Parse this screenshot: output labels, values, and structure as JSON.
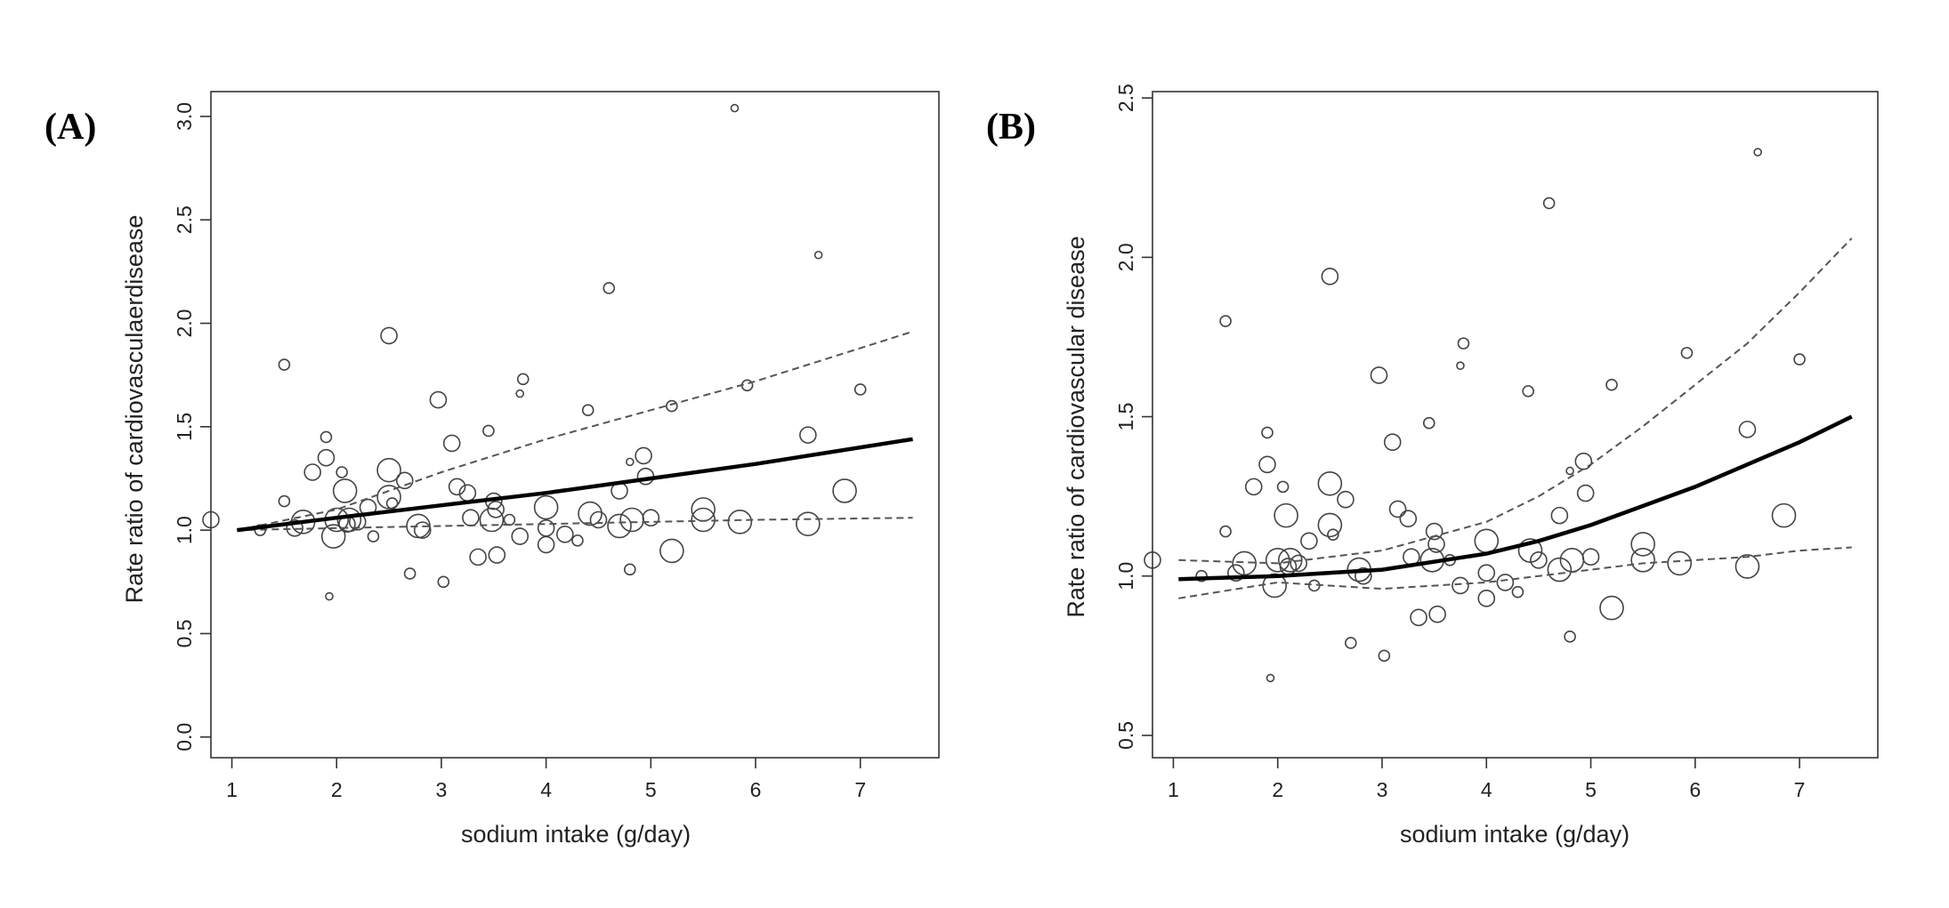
{
  "chart_data": [
    {
      "type": "scatter",
      "panel_label": "(A)",
      "xlabel": "sodium intake (g/day)",
      "ylabel": "Rate ratio of cardiovasculaerdisease",
      "xlim": [
        0.8,
        7.75
      ],
      "ylim": [
        -0.1,
        3.12
      ],
      "xticks": [
        1,
        2,
        3,
        4,
        5,
        6,
        7
      ],
      "yticks": [
        0.0,
        0.5,
        1.0,
        1.5,
        2.0,
        2.5,
        3.0
      ],
      "ytick_labels": [
        "0.0",
        "0.5",
        "1.0",
        "1.5",
        "2.0",
        "2.5",
        "3.0"
      ],
      "fit_curve": {
        "style": "solid",
        "x": [
          1.05,
          2,
          3,
          4,
          5,
          6,
          7.5
        ],
        "y": [
          1.0,
          1.06,
          1.12,
          1.18,
          1.25,
          1.32,
          1.44
        ]
      },
      "ci_upper": {
        "style": "dashed",
        "x": [
          1.05,
          2,
          3,
          4,
          5,
          6,
          7.5
        ],
        "y": [
          1.0,
          1.1,
          1.28,
          1.44,
          1.58,
          1.72,
          1.96
        ]
      },
      "ci_lower": {
        "style": "dashed",
        "x": [
          1.05,
          2,
          3,
          4,
          5,
          6,
          7.5
        ],
        "y": [
          1.0,
          1.01,
          1.02,
          1.03,
          1.04,
          1.05,
          1.06
        ]
      }
    },
    {
      "type": "scatter",
      "panel_label": "(B)",
      "xlabel": "sodium intake (g/day)",
      "ylabel": "Rate ratio of cardiovascular disease",
      "xlim": [
        0.8,
        7.75
      ],
      "ylim": [
        0.43,
        2.52
      ],
      "xticks": [
        1,
        2,
        3,
        4,
        5,
        6,
        7
      ],
      "yticks": [
        0.5,
        1.0,
        1.5,
        2.0,
        2.5
      ],
      "ytick_labels": [
        "0.5",
        "1.0",
        "1.5",
        "2.0",
        "2.5"
      ],
      "fit_curve": {
        "style": "solid",
        "x": [
          1.05,
          2,
          3,
          4,
          4.5,
          5,
          5.5,
          6,
          6.5,
          7,
          7.5
        ],
        "y": [
          0.99,
          1.0,
          1.02,
          1.07,
          1.11,
          1.16,
          1.22,
          1.28,
          1.35,
          1.42,
          1.5
        ]
      },
      "ci_upper": {
        "style": "dashed",
        "x": [
          1.05,
          2,
          3,
          4,
          4.5,
          5,
          5.5,
          6,
          6.5,
          7,
          7.5
        ],
        "y": [
          1.05,
          1.04,
          1.08,
          1.17,
          1.25,
          1.35,
          1.47,
          1.6,
          1.73,
          1.89,
          2.06
        ]
      },
      "ci_lower": {
        "style": "dashed",
        "x": [
          1.05,
          2,
          3,
          4,
          4.5,
          5,
          5.5,
          6,
          6.5,
          7,
          7.5
        ],
        "y": [
          0.93,
          0.98,
          0.96,
          0.98,
          1.0,
          1.02,
          1.04,
          1.05,
          1.06,
          1.08,
          1.09
        ]
      }
    }
  ],
  "studies": [
    {
      "x": 0.8,
      "y": 1.05,
      "w": "m"
    },
    {
      "x": 1.27,
      "y": 1.0,
      "w": "s"
    },
    {
      "x": 1.5,
      "y": 1.8,
      "w": "s"
    },
    {
      "x": 1.5,
      "y": 1.14,
      "w": "s"
    },
    {
      "x": 1.6,
      "y": 1.01,
      "w": "m"
    },
    {
      "x": 1.68,
      "y": 1.04,
      "w": "l"
    },
    {
      "x": 1.77,
      "y": 1.28,
      "w": "m"
    },
    {
      "x": 1.9,
      "y": 1.45,
      "w": "s"
    },
    {
      "x": 1.9,
      "y": 1.35,
      "w": "m"
    },
    {
      "x": 1.93,
      "y": 0.68,
      "w": "xs"
    },
    {
      "x": 1.97,
      "y": 0.97,
      "w": "l"
    },
    {
      "x": 2.0,
      "y": 1.05,
      "w": "l"
    },
    {
      "x": 2.05,
      "y": 1.28,
      "w": "s"
    },
    {
      "x": 2.08,
      "y": 1.19,
      "w": "l"
    },
    {
      "x": 2.1,
      "y": 1.03,
      "w": "m"
    },
    {
      "x": 2.12,
      "y": 1.05,
      "w": "l"
    },
    {
      "x": 2.2,
      "y": 1.04,
      "w": "m"
    },
    {
      "x": 2.3,
      "y": 1.11,
      "w": "m"
    },
    {
      "x": 2.35,
      "y": 0.97,
      "w": "s"
    },
    {
      "x": 2.5,
      "y": 1.94,
      "w": "m"
    },
    {
      "x": 2.5,
      "y": 1.29,
      "w": "l"
    },
    {
      "x": 2.5,
      "y": 1.16,
      "w": "l"
    },
    {
      "x": 2.53,
      "y": 1.13,
      "w": "s"
    },
    {
      "x": 2.65,
      "y": 1.24,
      "w": "m"
    },
    {
      "x": 2.7,
      "y": 0.79,
      "w": "s"
    },
    {
      "x": 2.78,
      "y": 1.02,
      "w": "l"
    },
    {
      "x": 2.82,
      "y": 1.0,
      "w": "m"
    },
    {
      "x": 2.97,
      "y": 1.63,
      "w": "m"
    },
    {
      "x": 3.02,
      "y": 0.75,
      "w": "s"
    },
    {
      "x": 3.1,
      "y": 1.42,
      "w": "m"
    },
    {
      "x": 3.15,
      "y": 1.21,
      "w": "m"
    },
    {
      "x": 3.25,
      "y": 1.18,
      "w": "m"
    },
    {
      "x": 3.28,
      "y": 1.06,
      "w": "m"
    },
    {
      "x": 3.35,
      "y": 0.87,
      "w": "m"
    },
    {
      "x": 3.45,
      "y": 1.48,
      "w": "s"
    },
    {
      "x": 3.48,
      "y": 1.05,
      "w": "l"
    },
    {
      "x": 3.5,
      "y": 1.14,
      "w": "m"
    },
    {
      "x": 3.52,
      "y": 1.1,
      "w": "m"
    },
    {
      "x": 3.53,
      "y": 0.88,
      "w": "m"
    },
    {
      "x": 3.65,
      "y": 1.05,
      "w": "s"
    },
    {
      "x": 3.75,
      "y": 1.66,
      "w": "xs"
    },
    {
      "x": 3.78,
      "y": 1.73,
      "w": "s"
    },
    {
      "x": 3.75,
      "y": 0.97,
      "w": "m"
    },
    {
      "x": 4.0,
      "y": 1.11,
      "w": "l"
    },
    {
      "x": 4.0,
      "y": 1.01,
      "w": "m"
    },
    {
      "x": 4.0,
      "y": 0.93,
      "w": "m"
    },
    {
      "x": 4.18,
      "y": 0.98,
      "w": "m"
    },
    {
      "x": 4.3,
      "y": 0.95,
      "w": "s"
    },
    {
      "x": 4.4,
      "y": 1.58,
      "w": "s"
    },
    {
      "x": 4.42,
      "y": 1.08,
      "w": "l"
    },
    {
      "x": 4.5,
      "y": 1.05,
      "w": "m"
    },
    {
      "x": 4.6,
      "y": 2.17,
      "w": "s"
    },
    {
      "x": 4.7,
      "y": 1.19,
      "w": "m"
    },
    {
      "x": 4.7,
      "y": 1.02,
      "w": "l"
    },
    {
      "x": 4.8,
      "y": 1.33,
      "w": "xs"
    },
    {
      "x": 4.8,
      "y": 0.81,
      "w": "s"
    },
    {
      "x": 4.82,
      "y": 1.05,
      "w": "l"
    },
    {
      "x": 4.93,
      "y": 1.36,
      "w": "m"
    },
    {
      "x": 4.95,
      "y": 1.26,
      "w": "m"
    },
    {
      "x": 5.0,
      "y": 1.06,
      "w": "m"
    },
    {
      "x": 5.2,
      "y": 1.6,
      "w": "s"
    },
    {
      "x": 5.2,
      "y": 0.9,
      "w": "l"
    },
    {
      "x": 5.5,
      "y": 1.1,
      "w": "l"
    },
    {
      "x": 5.5,
      "y": 1.05,
      "w": "l"
    },
    {
      "x": 5.8,
      "y": 3.04,
      "w": "xs"
    },
    {
      "x": 5.85,
      "y": 1.04,
      "w": "l"
    },
    {
      "x": 5.92,
      "y": 1.7,
      "w": "s"
    },
    {
      "x": 6.5,
      "y": 1.46,
      "w": "m"
    },
    {
      "x": 6.5,
      "y": 1.03,
      "w": "l"
    },
    {
      "x": 6.6,
      "y": 2.33,
      "w": "xs"
    },
    {
      "x": 6.85,
      "y": 1.19,
      "w": "l"
    },
    {
      "x": 7.0,
      "y": 1.68,
      "w": "s"
    }
  ]
}
